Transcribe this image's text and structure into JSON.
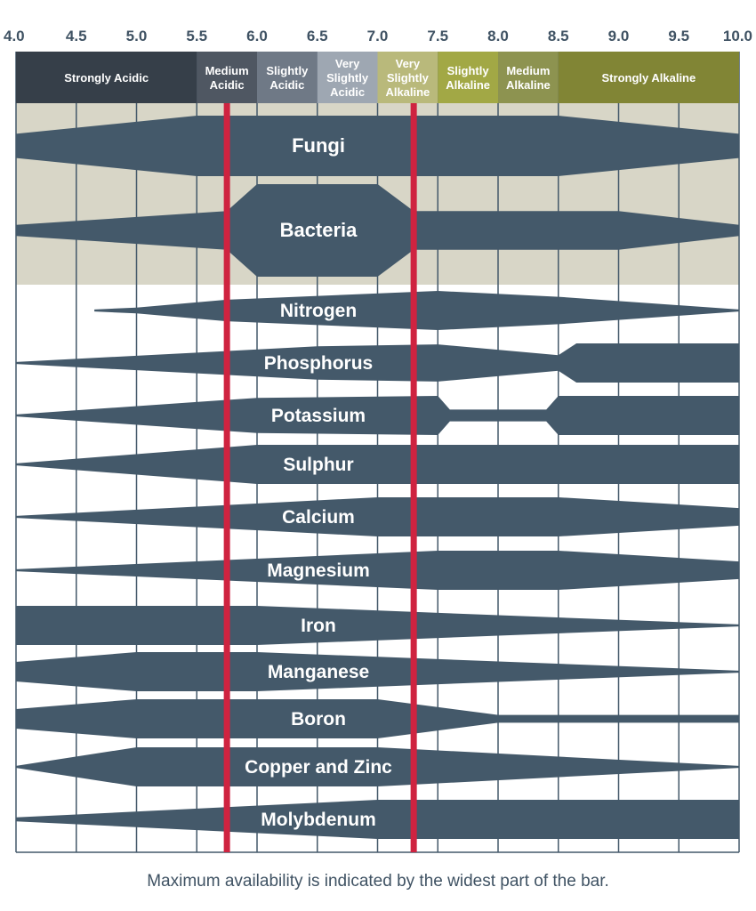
{
  "chart_data": {
    "type": "area",
    "title": "",
    "xlabel": "",
    "ylabel": "",
    "xlim": [
      4.0,
      10.0
    ],
    "x_ticks": [
      "4.0",
      "4.5",
      "5.0",
      "5.5",
      "6.0",
      "6.5",
      "7.0",
      "7.5",
      "8.0",
      "8.5",
      "9.0",
      "9.5",
      "10.0"
    ],
    "zones": [
      {
        "label": [
          "Strongly Acidic"
        ],
        "from": 4.0,
        "to": 5.5,
        "color": "#363f49"
      },
      {
        "label": [
          "Medium",
          "Acidic"
        ],
        "from": 5.5,
        "to": 6.0,
        "color": "#4f5762"
      },
      {
        "label": [
          "Slightly",
          "Acidic"
        ],
        "from": 6.0,
        "to": 6.5,
        "color": "#6f7986"
      },
      {
        "label": [
          "Very",
          "Slightly",
          "Acidic"
        ],
        "from": 6.5,
        "to": 7.0,
        "color": "#9ea7b2"
      },
      {
        "label": [
          "Very",
          "Slightly",
          "Alkaline"
        ],
        "from": 7.0,
        "to": 7.5,
        "color": "#b9b97b"
      },
      {
        "label": [
          "Slightly",
          "Alkaline"
        ],
        "from": 7.5,
        "to": 8.0,
        "color": "#a2a845"
      },
      {
        "label": [
          "Medium",
          "Alkaline"
        ],
        "from": 8.0,
        "to": 8.5,
        "color": "#8d9350"
      },
      {
        "label": [
          "Strongly Alkaline"
        ],
        "from": 8.5,
        "to": 10.0,
        "color": "#818535"
      }
    ],
    "reference_lines": [
      5.75,
      7.3
    ],
    "microbe_band": [
      "Fungi",
      "Bacteria"
    ],
    "note": "Maximum availability is indicated by the widest part of the bar.",
    "colors": {
      "bar": "#44596a",
      "grid": "#44596a",
      "band": "#d8d6c7",
      "ref_line": "#cf2340"
    },
    "series": [
      {
        "name": "Fungi",
        "width": [
          [
            4.0,
            0.4
          ],
          [
            5.5,
            1.0
          ],
          [
            8.5,
            1.0
          ],
          [
            10.0,
            0.4
          ]
        ]
      },
      {
        "name": "Bacteria",
        "width": [
          [
            4.0,
            0.12
          ],
          [
            5.75,
            0.42
          ],
          [
            6.0,
            1.0
          ],
          [
            7.0,
            1.0
          ],
          [
            7.3,
            0.42
          ],
          [
            9.0,
            0.42
          ],
          [
            10.0,
            0.12
          ]
        ]
      },
      {
        "name": "Nitrogen",
        "width": [
          [
            4.65,
            0.05
          ],
          [
            5.0,
            0.15
          ],
          [
            5.75,
            0.55
          ],
          [
            7.5,
            1.0
          ],
          [
            8.5,
            0.7
          ],
          [
            10.0,
            0.05
          ]
        ]
      },
      {
        "name": "Phosphorus",
        "width": [
          [
            4.0,
            0.05
          ],
          [
            6.5,
            0.85
          ],
          [
            7.5,
            0.95
          ],
          [
            8.5,
            0.4
          ],
          [
            8.65,
            1.0
          ],
          [
            10.0,
            1.0
          ]
        ]
      },
      {
        "name": "Potassium",
        "width": [
          [
            4.0,
            0.05
          ],
          [
            6.0,
            0.9
          ],
          [
            7.5,
            1.0
          ],
          [
            7.6,
            0.3
          ],
          [
            8.4,
            0.3
          ],
          [
            8.5,
            1.0
          ],
          [
            10.0,
            1.0
          ]
        ]
      },
      {
        "name": "Sulphur",
        "width": [
          [
            4.0,
            0.05
          ],
          [
            6.0,
            1.0
          ],
          [
            10.0,
            1.0
          ]
        ]
      },
      {
        "name": "Calcium",
        "width": [
          [
            4.0,
            0.05
          ],
          [
            7.0,
            1.0
          ],
          [
            8.5,
            1.0
          ],
          [
            10.0,
            0.45
          ]
        ]
      },
      {
        "name": "Magnesium",
        "width": [
          [
            4.0,
            0.05
          ],
          [
            7.5,
            1.0
          ],
          [
            8.5,
            1.0
          ],
          [
            10.0,
            0.45
          ]
        ]
      },
      {
        "name": "Iron",
        "width": [
          [
            4.0,
            1.0
          ],
          [
            6.0,
            1.0
          ],
          [
            10.0,
            0.05
          ]
        ]
      },
      {
        "name": "Manganese",
        "width": [
          [
            4.0,
            0.5
          ],
          [
            5.0,
            1.0
          ],
          [
            6.0,
            1.0
          ],
          [
            10.0,
            0.05
          ]
        ]
      },
      {
        "name": "Boron",
        "width": [
          [
            4.0,
            0.5
          ],
          [
            5.0,
            1.0
          ],
          [
            7.0,
            1.0
          ],
          [
            8.0,
            0.2
          ],
          [
            10.0,
            0.2
          ]
        ]
      },
      {
        "name": "Copper and Zinc",
        "width": [
          [
            4.0,
            0.05
          ],
          [
            5.0,
            1.0
          ],
          [
            7.0,
            1.0
          ],
          [
            10.0,
            0.05
          ]
        ]
      },
      {
        "name": "Molybdenum",
        "width": [
          [
            4.0,
            0.1
          ],
          [
            7.0,
            1.0
          ],
          [
            10.0,
            1.0
          ]
        ]
      }
    ]
  }
}
